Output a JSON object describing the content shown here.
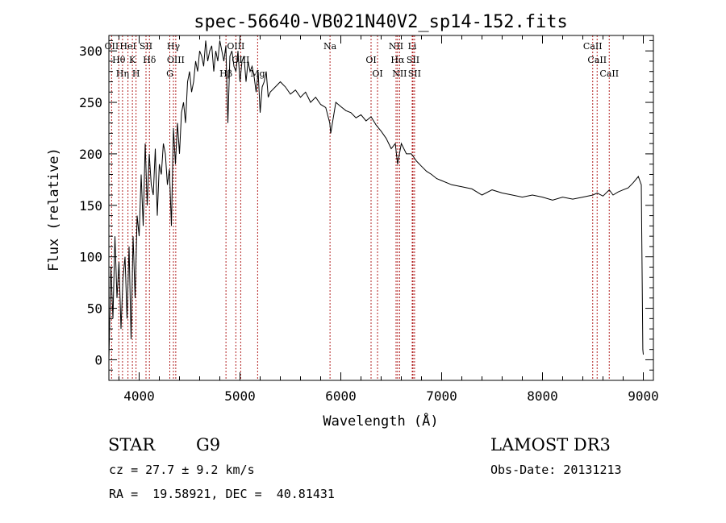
{
  "chart_data": {
    "type": "line",
    "title": "spec-56640-VB021N40V2_sp14-152.fits",
    "xlabel": "Wavelength (Å)",
    "ylabel": "Flux (relative)",
    "xlim": [
      3700,
      9100
    ],
    "ylim": [
      -20,
      315
    ],
    "xticks": [
      4000,
      5000,
      6000,
      7000,
      8000,
      9000
    ],
    "yticks": [
      0,
      50,
      100,
      150,
      200,
      250,
      300
    ],
    "grid": false,
    "series": [
      {
        "name": "flux",
        "x": [
          3700,
          3720,
          3740,
          3760,
          3780,
          3800,
          3820,
          3840,
          3860,
          3880,
          3900,
          3920,
          3940,
          3960,
          3980,
          4000,
          4020,
          4040,
          4060,
          4080,
          4100,
          4120,
          4140,
          4160,
          4180,
          4200,
          4220,
          4240,
          4260,
          4280,
          4300,
          4320,
          4340,
          4360,
          4380,
          4400,
          4420,
          4440,
          4460,
          4480,
          4500,
          4520,
          4540,
          4560,
          4580,
          4600,
          4620,
          4640,
          4660,
          4680,
          4700,
          4720,
          4740,
          4760,
          4780,
          4800,
          4820,
          4840,
          4860,
          4880,
          4900,
          4920,
          4940,
          4960,
          4980,
          5000,
          5020,
          5040,
          5060,
          5080,
          5100,
          5120,
          5140,
          5160,
          5180,
          5200,
          5220,
          5240,
          5260,
          5280,
          5300,
          5350,
          5400,
          5450,
          5500,
          5550,
          5600,
          5650,
          5700,
          5750,
          5800,
          5850,
          5890,
          5900,
          5950,
          6000,
          6050,
          6100,
          6150,
          6200,
          6250,
          6300,
          6350,
          6400,
          6450,
          6500,
          6540,
          6563,
          6600,
          6650,
          6700,
          6750,
          6800,
          6850,
          6900,
          6950,
          7000,
          7100,
          7200,
          7300,
          7400,
          7500,
          7600,
          7700,
          7800,
          7900,
          8000,
          8100,
          8200,
          8300,
          8400,
          8500,
          8542,
          8600,
          8662,
          8700,
          8750,
          8800,
          8850,
          8900,
          8950,
          8980,
          8995,
          9000
        ],
        "y": [
          0,
          90,
          40,
          120,
          60,
          95,
          30,
          80,
          100,
          40,
          110,
          20,
          120,
          60,
          140,
          120,
          180,
          130,
          210,
          150,
          200,
          170,
          160,
          205,
          140,
          190,
          180,
          210,
          200,
          170,
          185,
          130,
          225,
          190,
          230,
          200,
          240,
          250,
          230,
          270,
          280,
          260,
          270,
          290,
          280,
          300,
          295,
          285,
          310,
          290,
          300,
          305,
          280,
          300,
          290,
          310,
          300,
          290,
          305,
          230,
          295,
          300,
          285,
          280,
          300,
          270,
          290,
          295,
          270,
          290,
          280,
          285,
          275,
          260,
          280,
          240,
          265,
          270,
          280,
          255,
          260,
          265,
          270,
          265,
          258,
          262,
          255,
          260,
          250,
          255,
          248,
          245,
          230,
          220,
          250,
          246,
          242,
          240,
          235,
          238,
          232,
          236,
          228,
          222,
          215,
          205,
          210,
          190,
          210,
          200,
          200,
          193,
          188,
          183,
          180,
          176,
          174,
          170,
          168,
          166,
          160,
          165,
          162,
          160,
          158,
          160,
          158,
          155,
          158,
          156,
          158,
          160,
          162,
          159,
          165,
          160,
          163,
          165,
          167,
          172,
          178,
          170,
          10,
          5
        ]
      }
    ],
    "line_labels": [
      {
        "wavelength": 3727,
        "label": "OII"
      },
      {
        "wavelength": 3798,
        "label": "Hθ"
      },
      {
        "wavelength": 3835,
        "label": "Hη"
      },
      {
        "wavelength": 3889,
        "label": "HeI"
      },
      {
        "wavelength": 3933,
        "label": "K"
      },
      {
        "wavelength": 3969,
        "label": "H"
      },
      {
        "wavelength": 4068,
        "label": "SII"
      },
      {
        "wavelength": 4102,
        "label": "Hδ"
      },
      {
        "wavelength": 4304,
        "label": "G"
      },
      {
        "wavelength": 4340,
        "label": "Hγ"
      },
      {
        "wavelength": 4363,
        "label": "OIII"
      },
      {
        "wavelength": 4861,
        "label": "Hβ"
      },
      {
        "wavelength": 4959,
        "label": "OIII"
      },
      {
        "wavelength": 5007,
        "label": "OIII"
      },
      {
        "wavelength": 5175,
        "label": "Mg"
      },
      {
        "wavelength": 5893,
        "label": "Na"
      },
      {
        "wavelength": 6300,
        "label": "OI"
      },
      {
        "wavelength": 6364,
        "label": "OI"
      },
      {
        "wavelength": 6548,
        "label": "NII"
      },
      {
        "wavelength": 6563,
        "label": "Hα"
      },
      {
        "wavelength": 6583,
        "label": "NII"
      },
      {
        "wavelength": 6708,
        "label": "Li"
      },
      {
        "wavelength": 6716,
        "label": "SII"
      },
      {
        "wavelength": 6731,
        "label": "SII"
      },
      {
        "wavelength": 8498,
        "label": "CaII"
      },
      {
        "wavelength": 8542,
        "label": "CaII"
      },
      {
        "wavelength": 8662,
        "label": "CaII"
      }
    ],
    "colors": {
      "spectrum": "#000000",
      "lines": "#b22222"
    }
  },
  "info": {
    "object_class": "STAR",
    "subclass": "G9",
    "survey": "LAMOST DR3",
    "redshift": "cz = 27.7 ± 9.2 km/s",
    "obs_date": "Obs-Date: 20131213",
    "coordinates": "RA =  19.58921, DEC =  40.81431"
  }
}
